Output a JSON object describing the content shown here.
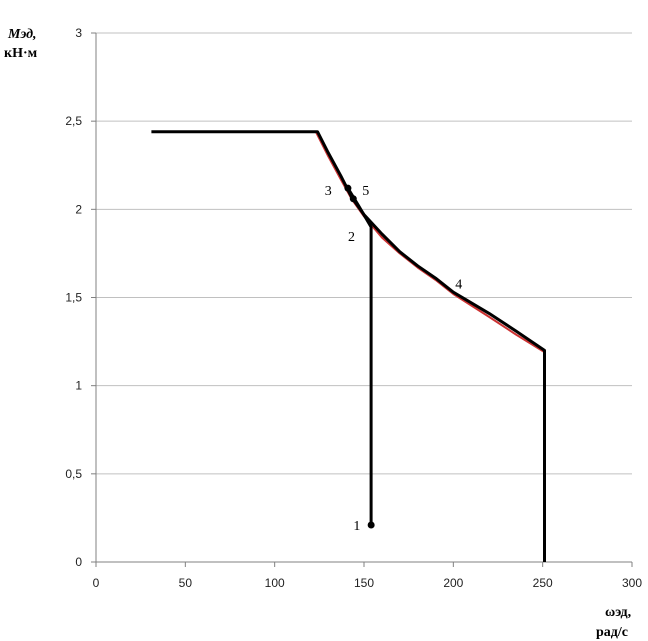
{
  "chart_data": {
    "type": "line",
    "xlabel": [
      "ωэд,",
      "рад/с"
    ],
    "ylabel": [
      "Мэд,",
      "кН·м"
    ],
    "xlim": [
      0,
      300
    ],
    "ylim": [
      0,
      3
    ],
    "grid": {
      "horizontal": true,
      "vertical": false
    },
    "x_ticks": [
      {
        "value": 0,
        "label": "0"
      },
      {
        "value": 50,
        "label": "50"
      },
      {
        "value": 100,
        "label": "100"
      },
      {
        "value": 150,
        "label": "150"
      },
      {
        "value": 200,
        "label": "200"
      },
      {
        "value": 250,
        "label": "250"
      },
      {
        "value": 300,
        "label": "300"
      }
    ],
    "y_ticks": [
      {
        "value": 0,
        "label": "0"
      },
      {
        "value": 0.5,
        "label": "0,5"
      },
      {
        "value": 1,
        "label": "1"
      },
      {
        "value": 1.5,
        "label": "1,5"
      },
      {
        "value": 2,
        "label": "2"
      },
      {
        "value": 2.5,
        "label": "2,5"
      },
      {
        "value": 3,
        "label": "3"
      }
    ],
    "series": [
      {
        "color": "#cc3333",
        "width": 2,
        "points": [
          [
            123,
            2.44
          ],
          [
            130,
            2.3
          ],
          [
            137,
            2.17
          ],
          [
            143,
            2.06
          ],
          [
            150,
            1.96
          ],
          [
            160,
            1.84
          ],
          [
            170,
            1.75
          ],
          [
            180,
            1.67
          ],
          [
            190,
            1.6
          ],
          [
            200,
            1.52
          ],
          [
            220,
            1.39
          ],
          [
            235,
            1.29
          ],
          [
            251,
            1.19
          ]
        ]
      },
      {
        "color": "#2e8b3c",
        "width": 2,
        "points": [
          [
            124,
            2.44
          ],
          [
            131,
            2.3
          ],
          [
            138,
            2.17
          ],
          [
            144,
            2.07
          ],
          [
            150,
            1.97
          ],
          [
            160,
            1.86
          ],
          [
            170,
            1.76
          ],
          [
            180,
            1.68
          ],
          [
            190,
            1.61
          ],
          [
            200,
            1.53
          ],
          [
            220,
            1.41
          ],
          [
            235,
            1.31
          ],
          [
            251,
            1.2
          ]
        ]
      },
      {
        "color": "#000000",
        "width": 3,
        "points": [
          [
            31,
            2.44
          ],
          [
            124,
            2.44
          ],
          [
            130,
            2.32
          ],
          [
            137,
            2.19
          ],
          [
            143,
            2.07
          ],
          [
            150,
            1.97
          ],
          [
            160,
            1.86
          ],
          [
            170,
            1.76
          ],
          [
            180,
            1.68
          ],
          [
            190,
            1.61
          ],
          [
            200,
            1.53
          ],
          [
            220,
            1.41
          ],
          [
            235,
            1.31
          ],
          [
            251,
            1.2
          ],
          [
            251,
            0
          ]
        ]
      },
      {
        "color": "#000000",
        "width": 3,
        "points": [
          [
            154,
            0.21
          ],
          [
            154,
            1.9
          ],
          [
            147,
            2.02
          ],
          [
            141,
            2.12
          ]
        ]
      }
    ],
    "markers": [
      {
        "x": 154,
        "y": 0.21
      },
      {
        "x": 141,
        "y": 2.12
      },
      {
        "x": 144,
        "y": 2.06
      }
    ],
    "annotations": [
      {
        "text": "1",
        "x": 146,
        "y": 0.21
      },
      {
        "text": "2",
        "x": 143,
        "y": 1.85
      },
      {
        "text": "3",
        "x": 130,
        "y": 2.11
      },
      {
        "text": "5",
        "x": 151,
        "y": 2.11
      },
      {
        "text": "4",
        "x": 203,
        "y": 1.58
      }
    ]
  }
}
